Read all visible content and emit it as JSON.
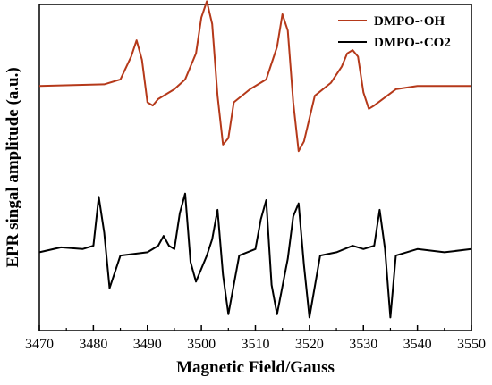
{
  "chart_data": {
    "type": "line",
    "title": "",
    "xlabel": "Magnetic Field/Gauss",
    "ylabel": "EPR singal amplitude (a.u.)",
    "xlim": [
      3470,
      3550
    ],
    "ylim": [
      0,
      10
    ],
    "x_ticks": [
      "3470",
      "3480",
      "3490",
      "3500",
      "3510",
      "3520",
      "3530",
      "3540",
      "3550"
    ],
    "y_tick_labels": false,
    "grid": false,
    "legend_position": "top-right",
    "series": [
      {
        "name": "DMPO-·OH",
        "color": "#b5391a",
        "x": [
          3470,
          3482,
          3485,
          3487,
          3488,
          3489,
          3490,
          3491,
          3492,
          3495,
          3497,
          3499,
          3500,
          3501,
          3502,
          3503,
          3504,
          3505,
          3506,
          3509,
          3512,
          3514,
          3515,
          3516,
          3517,
          3518,
          3519,
          3521,
          3524,
          3526,
          3527,
          3528,
          3529,
          3530,
          3531,
          3532,
          3536,
          3540,
          3550
        ],
        "y": [
          7.5,
          7.55,
          7.7,
          8.4,
          8.9,
          8.3,
          7.0,
          6.9,
          7.1,
          7.4,
          7.7,
          8.5,
          9.6,
          10.1,
          9.4,
          7.2,
          5.7,
          5.9,
          7.0,
          7.4,
          7.7,
          8.7,
          9.7,
          9.2,
          7.0,
          5.5,
          5.8,
          7.2,
          7.6,
          8.1,
          8.5,
          8.6,
          8.4,
          7.3,
          6.8,
          6.9,
          7.4,
          7.5,
          7.5
        ]
      },
      {
        "name": "DMPO-·CO2",
        "color": "#000000",
        "x": [
          3470,
          3474,
          3478,
          3480,
          3481,
          3482,
          3483,
          3485,
          3490,
          3492,
          3493,
          3494,
          3495,
          3496,
          3497,
          3498,
          3499,
          3501,
          3502,
          3503,
          3504,
          3505,
          3507,
          3510,
          3511,
          3512,
          3513,
          3514,
          3516,
          3517,
          3518,
          3519,
          3520,
          3522,
          3525,
          3528,
          3530,
          3532,
          3533,
          3534,
          3535,
          3536,
          3540,
          3545,
          3550
        ],
        "y": [
          2.4,
          2.55,
          2.5,
          2.6,
          4.1,
          3.0,
          1.3,
          2.3,
          2.4,
          2.6,
          2.9,
          2.6,
          2.5,
          3.6,
          4.2,
          2.1,
          1.5,
          2.3,
          2.8,
          3.7,
          1.7,
          0.5,
          2.3,
          2.5,
          3.4,
          4.0,
          1.4,
          0.5,
          2.2,
          3.5,
          3.9,
          2.0,
          0.4,
          2.3,
          2.4,
          2.6,
          2.5,
          2.6,
          3.7,
          2.5,
          0.4,
          2.3,
          2.5,
          2.4,
          2.5
        ]
      }
    ]
  }
}
